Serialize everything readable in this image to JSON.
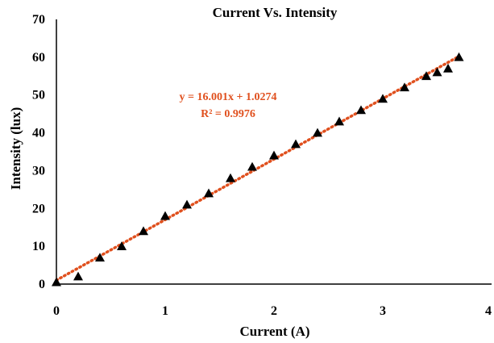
{
  "chart_data": {
    "type": "scatter",
    "title": "Current Vs. Intensity",
    "xlabel": "Current (A)",
    "ylabel": "Intensity  (lux)",
    "xlim": [
      0,
      4
    ],
    "ylim": [
      0,
      70
    ],
    "xticks": [
      "0",
      "1",
      "2",
      "3",
      "4"
    ],
    "yticks": [
      "0",
      "10",
      "20",
      "30",
      "40",
      "50",
      "60",
      "70"
    ],
    "grid": false,
    "marker": "triangle",
    "marker_color": "#000000",
    "x": [
      0,
      0.2,
      0.4,
      0.6,
      0.8,
      1.0,
      1.2,
      1.4,
      1.6,
      1.8,
      2.0,
      2.2,
      2.4,
      2.6,
      2.8,
      3.0,
      3.2,
      3.4,
      3.5,
      3.6,
      3.7
    ],
    "y": [
      0.5,
      2,
      7,
      10,
      14,
      18,
      21,
      24,
      28,
      31,
      34,
      37,
      40,
      43,
      46,
      49,
      52,
      55,
      56,
      57,
      60
    ],
    "trendline": {
      "type": "linear",
      "slope": 16.001,
      "intercept": 1.0274,
      "x_range": [
        0,
        3.7
      ],
      "color": "#e0501e",
      "style": "dotted",
      "equation_label": "y = 16.001x + 1.0274",
      "r2_label": "R² = 0.9976"
    }
  }
}
